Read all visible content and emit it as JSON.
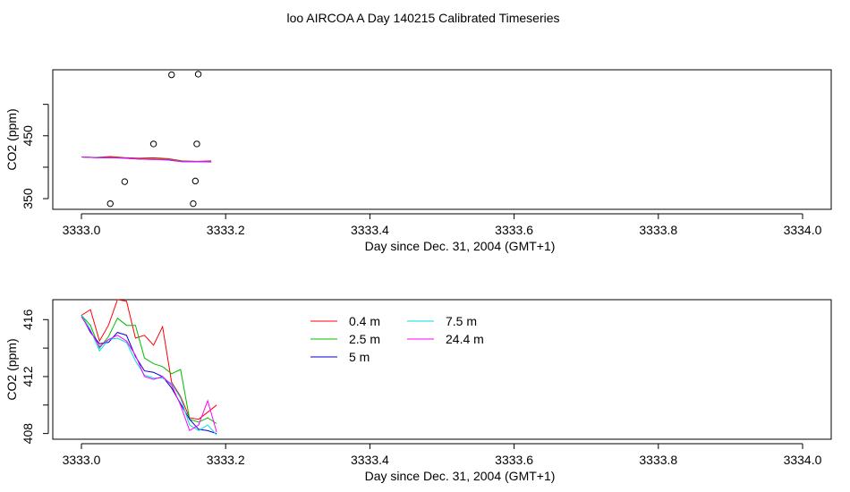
{
  "page_title": "loo AIRCOA A  Day 140215  Calibrated Timeseries",
  "colors": {
    "axis": "#000000",
    "series": [
      "#ff0000",
      "#00bb00",
      "#0000cc",
      "#00dddd",
      "#ff00ff"
    ]
  },
  "chart_data": [
    {
      "type": "scatter",
      "title": "",
      "xlabel": "Day since Dec. 31, 2004 (GMT+1)",
      "ylabel": "CO2 (ppm)",
      "xlim": [
        3333.0,
        3334.0
      ],
      "ylim": [
        333,
        555
      ],
      "grid": false,
      "x_ticks": [
        "3333.0",
        "3333.2",
        "3333.4",
        "3333.6",
        "3333.8",
        "3334.0"
      ],
      "y_ticks": [
        {
          "value": 350,
          "label": "350"
        },
        {
          "value": 400,
          "label": ""
        },
        {
          "value": 450,
          "label": "450"
        },
        {
          "value": 500,
          "label": ""
        }
      ],
      "points": [
        {
          "x": 3333.04,
          "y": 342
        },
        {
          "x": 3333.06,
          "y": 377
        },
        {
          "x": 3333.1,
          "y": 437
        },
        {
          "x": 3333.125,
          "y": 547
        },
        {
          "x": 3333.155,
          "y": 342
        },
        {
          "x": 3333.158,
          "y": 378
        },
        {
          "x": 3333.16,
          "y": 437
        },
        {
          "x": 3333.162,
          "y": 548
        }
      ],
      "series": [
        {
          "x": [
            3333.0,
            3333.02,
            3333.04,
            3333.06,
            3333.08,
            3333.1,
            3333.12,
            3333.14,
            3333.16,
            3333.18
          ],
          "y": [
            416.2,
            415.6,
            416.9,
            415.2,
            414.3,
            415.0,
            413.6,
            410.0,
            409.3,
            410.0
          ]
        },
        {
          "x": [
            3333.0,
            3333.02,
            3333.04,
            3333.06,
            3333.08,
            3333.1,
            3333.12,
            3333.14,
            3333.16,
            3333.18
          ],
          "y": [
            416.2,
            415.4,
            415.5,
            414.6,
            413.4,
            413.0,
            412.2,
            409.5,
            408.9,
            408.7
          ]
        },
        {
          "x": [
            3333.0,
            3333.02,
            3333.04,
            3333.06,
            3333.08,
            3333.1,
            3333.12,
            3333.14,
            3333.16,
            3333.18
          ],
          "y": [
            416.2,
            415.3,
            415.3,
            414.4,
            413.0,
            412.4,
            411.6,
            408.9,
            408.5,
            408.3
          ]
        },
        {
          "x": [
            3333.0,
            3333.02,
            3333.04,
            3333.06,
            3333.08,
            3333.1,
            3333.12,
            3333.14,
            3333.16,
            3333.18
          ],
          "y": [
            416.2,
            415.3,
            415.2,
            414.3,
            412.9,
            412.3,
            411.5,
            408.8,
            408.8,
            408.6
          ]
        },
        {
          "x": [
            3333.0,
            3333.02,
            3333.04,
            3333.06,
            3333.08,
            3333.1,
            3333.12,
            3333.14,
            3333.16,
            3333.18
          ],
          "y": [
            416.2,
            415.2,
            415.1,
            414.2,
            412.8,
            412.2,
            411.4,
            408.6,
            409.0,
            408.9
          ]
        }
      ]
    },
    {
      "type": "line",
      "title": "",
      "xlabel": "Day since Dec. 31, 2004 (GMT+1)",
      "ylabel": "CO2 (ppm)",
      "xlim": [
        3333.0,
        3334.0
      ],
      "ylim": [
        407.6,
        417.4
      ],
      "grid": false,
      "legend_position": "top-center",
      "x_ticks": [
        "3333.0",
        "3333.2",
        "3333.4",
        "3333.6",
        "3333.8",
        "3334.0"
      ],
      "y_ticks": [
        {
          "value": 408,
          "label": "408"
        },
        {
          "value": 410,
          "label": ""
        },
        {
          "value": 412,
          "label": "412"
        },
        {
          "value": 414,
          "label": ""
        },
        {
          "value": 416,
          "label": "416"
        }
      ],
      "series": [
        {
          "name": "0.4 m",
          "x": [
            3333.0,
            3333.0125,
            3333.025,
            3333.0375,
            3333.05,
            3333.0625,
            3333.075,
            3333.0875,
            3333.1,
            3333.1125,
            3333.125,
            3333.1375,
            3333.15,
            3333.1625,
            3333.175,
            3333.1875
          ],
          "y": [
            416.3,
            416.7,
            414.5,
            415.6,
            417.4,
            417.3,
            414.7,
            414.9,
            414.2,
            415.5,
            411.6,
            410.6,
            409.1,
            409.0,
            409.5,
            410.0
          ]
        },
        {
          "name": "2.5 m",
          "x": [
            3333.0,
            3333.0125,
            3333.025,
            3333.0375,
            3333.05,
            3333.0625,
            3333.075,
            3333.0875,
            3333.1,
            3333.1125,
            3333.125,
            3333.1375,
            3333.15,
            3333.1625,
            3333.175,
            3333.1875
          ],
          "y": [
            416.3,
            415.6,
            414.0,
            414.8,
            416.1,
            415.6,
            415.6,
            413.3,
            412.9,
            412.7,
            412.2,
            412.5,
            409.0,
            408.8,
            409.1,
            408.7
          ]
        },
        {
          "name": "5 m",
          "x": [
            3333.0,
            3333.0125,
            3333.025,
            3333.0375,
            3333.05,
            3333.0625,
            3333.075,
            3333.0875,
            3333.1,
            3333.1125,
            3333.125,
            3333.1375,
            3333.15,
            3333.1625,
            3333.175,
            3333.1875
          ],
          "y": [
            416.3,
            415.1,
            414.3,
            414.4,
            415.1,
            414.9,
            413.4,
            412.4,
            412.3,
            412.0,
            411.2,
            410.1,
            409.0,
            408.3,
            408.2,
            408.0
          ]
        },
        {
          "name": "7.5 m",
          "x": [
            3333.0,
            3333.0125,
            3333.025,
            3333.0375,
            3333.05,
            3333.0625,
            3333.075,
            3333.0875,
            3333.1,
            3333.1125,
            3333.125,
            3333.1375,
            3333.15,
            3333.1625,
            3333.175,
            3333.1875
          ],
          "y": [
            416.3,
            415.3,
            413.8,
            414.6,
            414.7,
            414.4,
            413.1,
            412.1,
            411.9,
            411.9,
            411.5,
            410.5,
            408.6,
            408.2,
            408.6,
            407.9
          ]
        },
        {
          "name": "24.4 m",
          "x": [
            3333.0,
            3333.0125,
            3333.025,
            3333.0375,
            3333.05,
            3333.0625,
            3333.075,
            3333.0875,
            3333.1,
            3333.1125,
            3333.125,
            3333.1375,
            3333.15,
            3333.1625,
            3333.175,
            3333.1875
          ],
          "y": [
            416.2,
            415.2,
            414.1,
            414.6,
            414.9,
            414.5,
            413.5,
            412.0,
            411.8,
            412.0,
            411.4,
            410.0,
            408.2,
            408.6,
            410.3,
            408.1
          ]
        }
      ]
    }
  ]
}
